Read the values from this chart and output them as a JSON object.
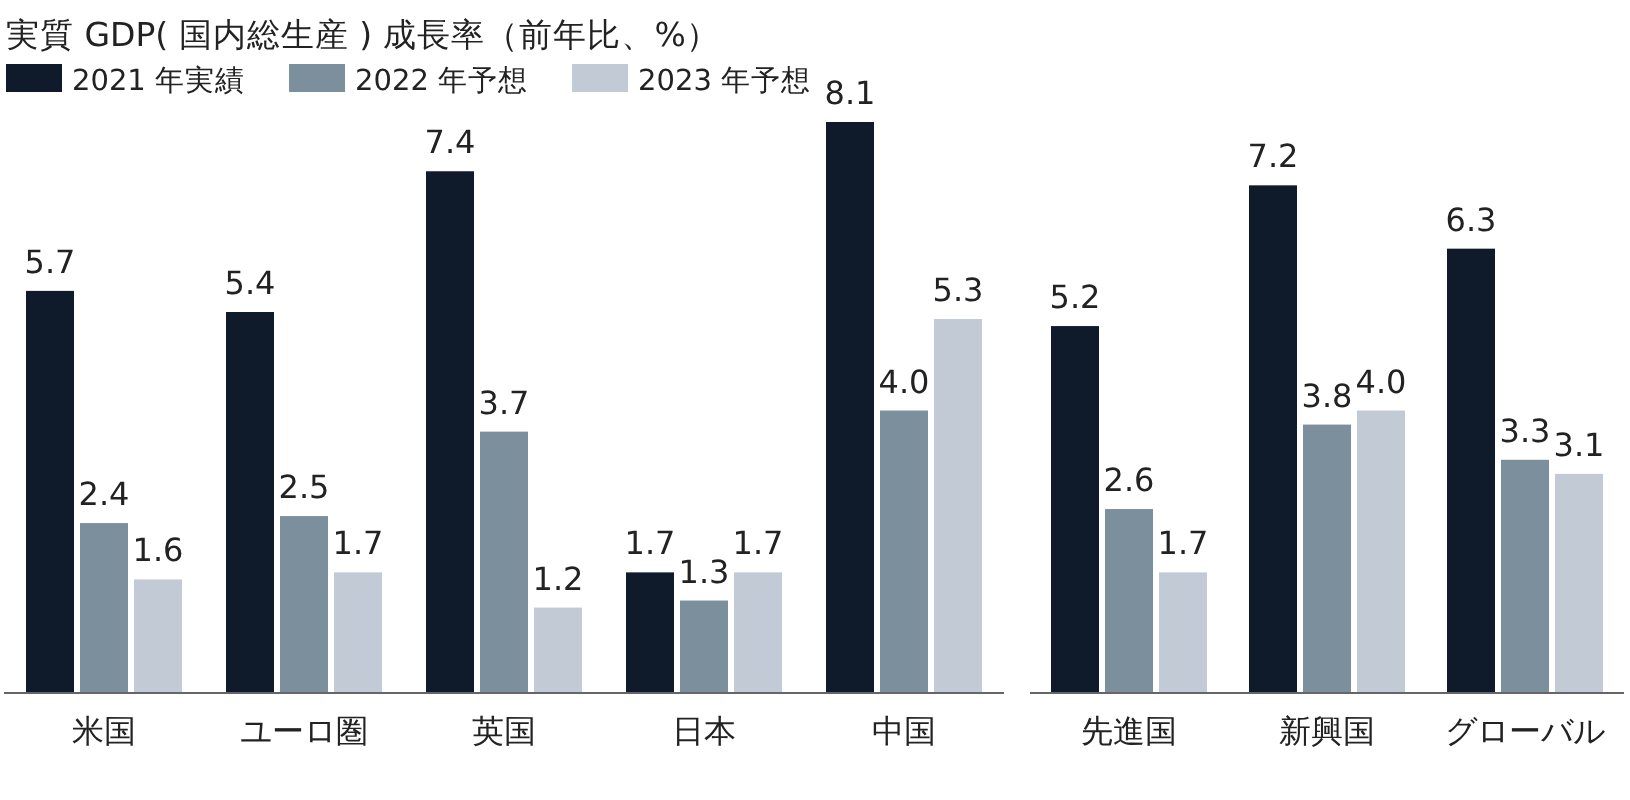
{
  "chart_data": [
    {
      "type": "bar",
      "title": "実質 GDP( 国内総生産 ) 成長率（前年比、%）",
      "legend": "top left",
      "categories": [
        "米国",
        "ユーロ圏",
        "英国",
        "日本",
        "中国"
      ],
      "series": [
        {
          "name": "2021 年実績",
          "color": "#0f1b2a",
          "values": [
            5.7,
            5.4,
            7.4,
            1.7,
            8.1
          ],
          "value_labels": [
            "5.7",
            "5.4",
            "7.4",
            "1.7",
            "8.1"
          ]
        },
        {
          "name": "2022 年予想",
          "color": "#7b8f9d",
          "values": [
            2.4,
            2.5,
            3.7,
            1.3,
            4.0
          ],
          "value_labels": [
            "2.4",
            "2.5",
            "3.7",
            "1.3",
            "4.0"
          ]
        },
        {
          "name": "2023 年予想",
          "color": "#c2cbd5",
          "values": [
            1.6,
            1.7,
            1.2,
            1.7,
            5.3
          ],
          "value_labels": [
            "1.6",
            "1.7",
            "1.2",
            "1.7",
            "5.3"
          ]
        }
      ]
    },
    {
      "type": "bar",
      "categories": [
        "先進国",
        "新興国",
        "グローバル"
      ],
      "series": [
        {
          "color": "#0f1b2a",
          "values": [
            5.2,
            7.2,
            6.3
          ],
          "value_labels": [
            "5.2",
            "7.2",
            "6.3"
          ]
        },
        {
          "color": "#7b8f9d",
          "values": [
            2.6,
            3.8,
            3.3
          ],
          "value_labels": [
            "2.6",
            "3.8",
            "3.3"
          ]
        },
        {
          "color": "#c2cbd5",
          "values": [
            1.7,
            4.0,
            3.1
          ],
          "value_labels": [
            "1.7",
            "4.0",
            "3.1"
          ]
        }
      ]
    }
  ]
}
